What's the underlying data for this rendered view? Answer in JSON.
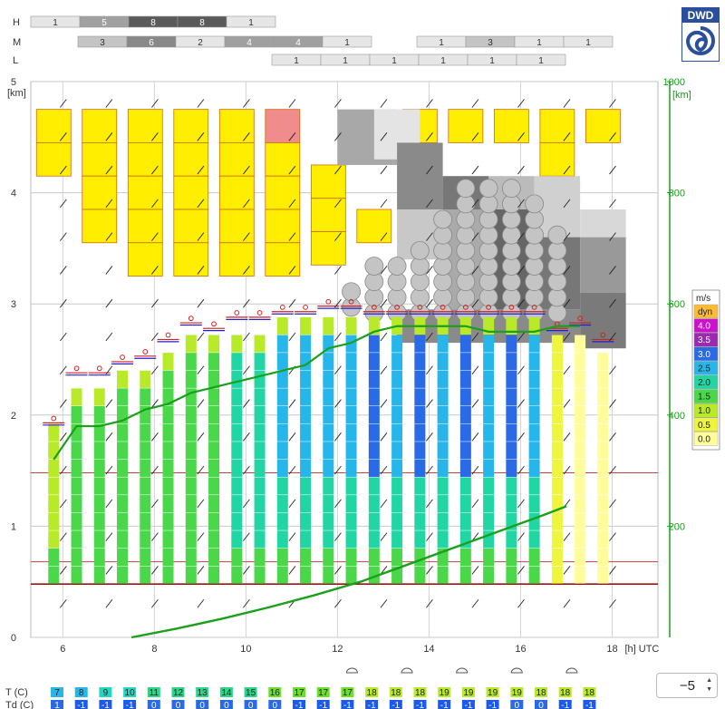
{
  "logo": {
    "text": "DWD"
  },
  "cloud_rows": {
    "labels": [
      "H",
      "M",
      "L"
    ],
    "H": [
      {
        "x": 6,
        "v": "1"
      },
      {
        "x": 6.5,
        "v": "5"
      },
      {
        "x": 7,
        "v": "8"
      },
      {
        "x": 7.5,
        "v": "8"
      },
      {
        "x": 8,
        "v": "1"
      }
    ],
    "M": [
      {
        "x": 6.5,
        "v": "3"
      },
      {
        "x": 7,
        "v": "6"
      },
      {
        "x": 7.5,
        "v": "2"
      },
      {
        "x": 8,
        "v": "4"
      },
      {
        "x": 8.5,
        "v": "4"
      },
      {
        "x": 9,
        "v": "1"
      },
      {
        "x": 12.5,
        "v": "1"
      },
      {
        "x": 13,
        "v": "3"
      },
      {
        "x": 13.5,
        "v": "1"
      },
      {
        "x": 14,
        "v": "1"
      }
    ],
    "L": [
      {
        "x": 8,
        "v": "1"
      },
      {
        "x": 9,
        "v": "1"
      },
      {
        "x": 10,
        "v": "1"
      },
      {
        "x": 11,
        "v": "1"
      },
      {
        "x": 12,
        "v": "1"
      },
      {
        "x": 13,
        "v": "1"
      }
    ]
  },
  "spinner": {
    "value": "−5"
  },
  "colors": {
    "yellow": "#ffee00",
    "m00": "#fffc9c",
    "m05": "#eef53c",
    "m10": "#b8ea2a",
    "m15": "#4ad84a",
    "m20": "#22d6a4",
    "m25": "#27b6ea",
    "m30": "#2a6ae6",
    "m35": "#9b2ab0",
    "m40": "#cc11cc",
    "green": "#1aa01a"
  },
  "chart_data": {
    "type": "meteogram",
    "x_axis": {
      "ticks": [
        "6",
        "8",
        "10",
        "12",
        "14",
        "16",
        "18"
      ],
      "unit": "[h] UTC"
    },
    "y_axis_left": {
      "ticks": [
        "0",
        "1",
        "2",
        "3",
        "4",
        "5"
      ],
      "unit": "[km]",
      "range": [
        0,
        5
      ]
    },
    "y_axis_right": {
      "ticks": [
        "200",
        "400",
        "600",
        "800",
        "1000"
      ],
      "unit": "[km]",
      "range": [
        0,
        1000
      ]
    },
    "legend": {
      "unit": "m/s",
      "items": [
        {
          "label": "dyn",
          "color": "#ffbb33"
        },
        {
          "label": "4.0",
          "color": "#cc11cc"
        },
        {
          "label": "3.5",
          "color": "#9b2ab0"
        },
        {
          "label": "3.0",
          "color": "#2a6ae6"
        },
        {
          "label": "2.5",
          "color": "#27b6ea"
        },
        {
          "label": "2.0",
          "color": "#22d6a4"
        },
        {
          "label": "1.5",
          "color": "#4ad84a"
        },
        {
          "label": "1.0",
          "color": "#b8ea2a"
        },
        {
          "label": "0.5",
          "color": "#eef53c"
        },
        {
          "label": "0.0",
          "color": "#fffc9c"
        }
      ]
    },
    "columns_x": [
      5.8,
      6.3,
      6.8,
      7.3,
      7.8,
      8.3,
      8.8,
      9.3,
      9.8,
      10.3,
      10.8,
      11.3,
      11.8,
      12.3,
      12.8,
      13.3,
      13.8,
      14.3,
      14.8,
      15.3,
      15.8,
      16.3,
      16.8,
      17.3,
      17.8
    ],
    "bl_top_km": [
      1.85,
      2.3,
      2.3,
      2.4,
      2.45,
      2.6,
      2.75,
      2.7,
      2.8,
      2.8,
      2.85,
      2.85,
      2.9,
      2.9,
      2.85,
      2.85,
      2.85,
      2.85,
      2.85,
      2.85,
      2.85,
      2.85,
      2.7,
      2.75,
      2.6
    ],
    "bl_updraft": [
      "1.0",
      "1.5",
      "1.5",
      "1.5",
      "1.5",
      "1.5",
      "1.5",
      "1.5",
      "2.0",
      "2.0",
      "2.5",
      "2.5",
      "2.5",
      "2.5",
      "3.0",
      "2.5",
      "3.0",
      "2.5",
      "3.0",
      "2.5",
      "3.0",
      "2.5",
      "0.5",
      "0.0",
      "0.0"
    ],
    "green_line": {
      "series": "mix",
      "x": [
        5.8,
        6.3,
        6.8,
        7.3,
        7.8,
        8.3,
        8.8,
        9.3,
        9.8,
        10.3,
        10.8,
        11.3,
        11.8,
        12.3,
        12.8,
        13.3,
        13.8,
        14.3,
        14.8,
        15.3,
        15.8,
        16.3,
        16.8,
        17.3
      ],
      "y_km": [
        1.6,
        1.9,
        1.9,
        1.95,
        2.05,
        2.1,
        2.2,
        2.25,
        2.3,
        2.35,
        2.4,
        2.45,
        2.6,
        2.65,
        2.75,
        2.8,
        2.8,
        2.8,
        2.8,
        2.75,
        2.75,
        2.75,
        2.8,
        2.8
      ]
    },
    "lower_green_line": {
      "x": [
        7.5,
        8.5,
        9.5,
        10.5,
        11.5,
        12.5,
        13.5,
        14.5,
        15.5,
        16.5,
        17.0
      ],
      "y_km": [
        0.0,
        0.08,
        0.17,
        0.27,
        0.38,
        0.5,
        0.65,
        0.8,
        0.95,
        1.1,
        1.18
      ]
    },
    "rows": [
      {
        "label": "T (C)",
        "values": [
          "7",
          "8",
          "9",
          "10",
          "11",
          "12",
          "13",
          "14",
          "15",
          "16",
          "17",
          "17",
          "17",
          "18",
          "18",
          "18",
          "19",
          "19",
          "19",
          "19",
          "18",
          "18",
          "18"
        ]
      },
      {
        "label": "Td (C)",
        "values": [
          "1",
          "-1",
          "-1",
          "-1",
          "0",
          "0",
          "0",
          "0",
          "0",
          "0",
          "-1",
          "-1",
          "-1",
          "-1",
          "-1",
          "-1",
          "-1",
          "-1",
          "-1",
          "0",
          "0",
          "-1",
          "-1"
        ]
      }
    ]
  }
}
